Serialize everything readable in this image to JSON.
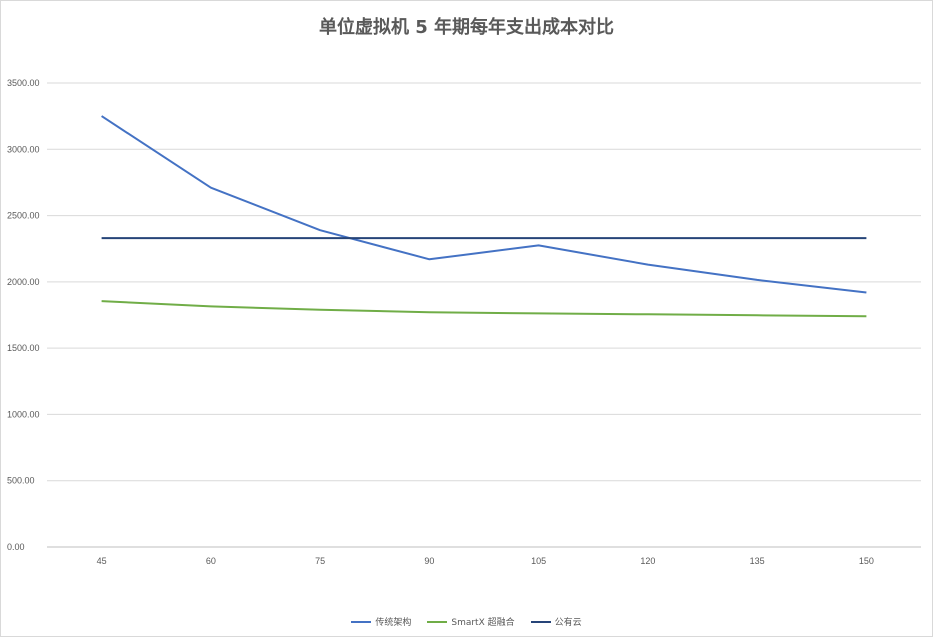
{
  "chart_data": {
    "type": "line",
    "title": "单位虚拟机 5 年期每年支出成本对比",
    "xlabel": "",
    "ylabel": "",
    "categories": [
      "45",
      "60",
      "75",
      "90",
      "105",
      "120",
      "135",
      "150"
    ],
    "ylim": [
      0,
      3500
    ],
    "yticks": [
      "0.00",
      "500.00",
      "1000.00",
      "1500.00",
      "2000.00",
      "2500.00",
      "3000.00",
      "3500.00"
    ],
    "grid": true,
    "legend_position": "bottom",
    "series": [
      {
        "name": "传统架构",
        "color": "#4472c4",
        "values": [
          3250,
          2710,
          2390,
          2170,
          2275,
          2130,
          2015,
          1920
        ]
      },
      {
        "name": "SmartX 超融合",
        "color": "#70ad47",
        "values": [
          1855,
          1815,
          1790,
          1770,
          1762,
          1755,
          1748,
          1740
        ]
      },
      {
        "name": "公有云",
        "color": "#264478",
        "values": [
          2330,
          2330,
          2330,
          2330,
          2330,
          2330,
          2330,
          2330
        ]
      }
    ]
  }
}
